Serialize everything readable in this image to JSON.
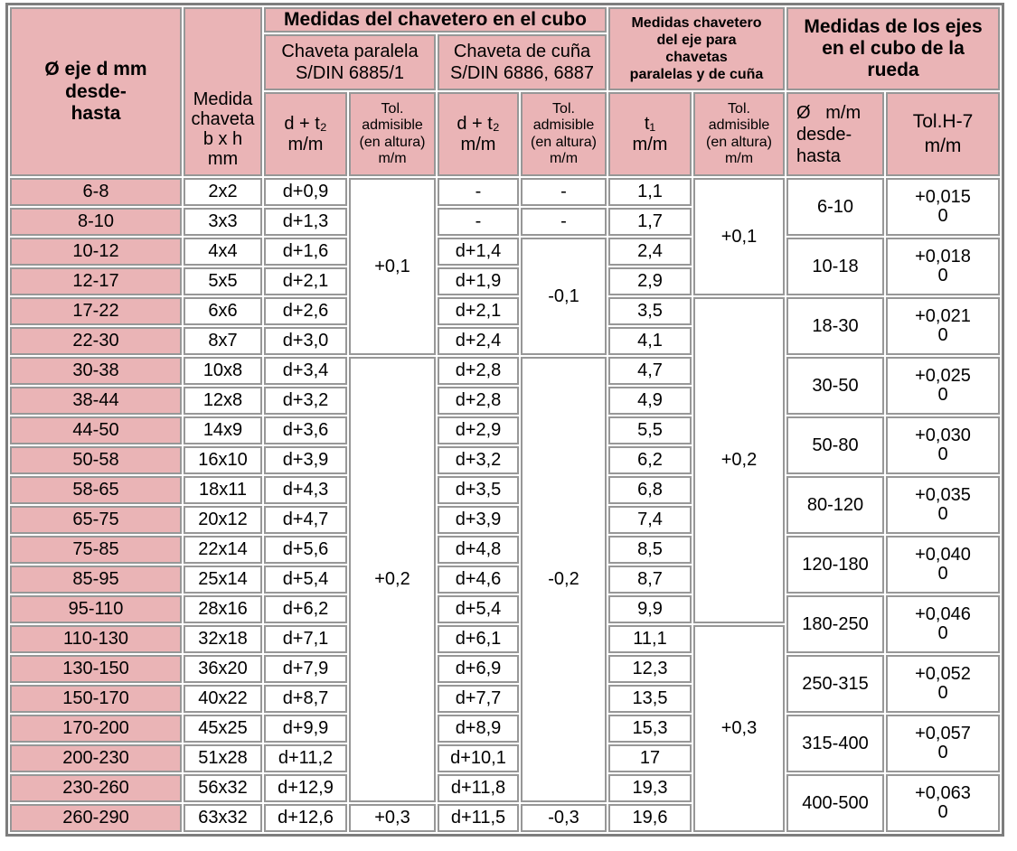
{
  "colors": {
    "pink": "#eab4b6",
    "cell_border": "#979797",
    "outer_border": "#7d7d7d",
    "background": "#ffffff",
    "text": "#000000"
  },
  "header": {
    "shaft_range": "Ø eje d mm\ndesde-\nhasta",
    "key_size": "Medida\nchaveta\nb x h\nmm",
    "hub_keyway_group": "Medidas del chavetero en el cubo",
    "shaft_keyway_group": "Medidas chavetero\ndel eje para\nchavetas\nparalelas y de cuña",
    "shaft_in_hub_group": "Medidas de los ejes\nen el cubo de la\nrueda",
    "parallel_key_group": "Chaveta paralela\nS/DIN 6885/1",
    "wedge_key_group": "Chaveta de cuña\nS/DIN 6886, 6887",
    "parallel_dt2": "d + t₂\nm/m",
    "parallel_tol": "Tol.\nadmisible\n(en altura)\nm/m",
    "wedge_dt2": "d + t₂\nm/m",
    "wedge_tol": "Tol.\nadmisible\n(en altura)\nm/m",
    "t1": "t₁\nm/m",
    "shaft_tol": "Tol.\nadmisible\n(en altura)\nm/m",
    "hub_range": "Ø   m/m\ndesde-\nhasta",
    "hub_tol": "Tol.H-7\nm/m"
  },
  "body": {
    "rows": [
      {
        "range": "6-8",
        "key": "2x2",
        "par": "d+0,9",
        "cuna": "-",
        "t1": "1,1"
      },
      {
        "range": "8-10",
        "key": "3x3",
        "par": "d+1,3",
        "cuna": "-",
        "t1": "1,7"
      },
      {
        "range": "10-12",
        "key": "4x4",
        "par": "d+1,6",
        "cuna": "d+1,4",
        "t1": "2,4"
      },
      {
        "range": "12-17",
        "key": "5x5",
        "par": "d+2,1",
        "cuna": "d+1,9",
        "t1": "2,9"
      },
      {
        "range": "17-22",
        "key": "6x6",
        "par": "d+2,6",
        "cuna": "d+2,1",
        "t1": "3,5"
      },
      {
        "range": "22-30",
        "key": "8x7",
        "par": "d+3,0",
        "cuna": "d+2,4",
        "t1": "4,1"
      },
      {
        "range": "30-38",
        "key": "10x8",
        "par": "d+3,4",
        "cuna": "d+2,8",
        "t1": "4,7"
      },
      {
        "range": "38-44",
        "key": "12x8",
        "par": "d+3,2",
        "cuna": "d+2,8",
        "t1": "4,9"
      },
      {
        "range": "44-50",
        "key": "14x9",
        "par": "d+3,6",
        "cuna": "d+2,9",
        "t1": "5,5"
      },
      {
        "range": "50-58",
        "key": "16x10",
        "par": "d+3,9",
        "cuna": "d+3,2",
        "t1": "6,2"
      },
      {
        "range": "58-65",
        "key": "18x11",
        "par": "d+4,3",
        "cuna": "d+3,5",
        "t1": "6,8"
      },
      {
        "range": "65-75",
        "key": "20x12",
        "par": "d+4,7",
        "cuna": "d+3,9",
        "t1": "7,4"
      },
      {
        "range": "75-85",
        "key": "22x14",
        "par": "d+5,6",
        "cuna": "d+4,8",
        "t1": "8,5"
      },
      {
        "range": "85-95",
        "key": "25x14",
        "par": "d+5,4",
        "cuna": "d+4,6",
        "t1": "8,7"
      },
      {
        "range": "95-110",
        "key": "28x16",
        "par": "d+6,2",
        "cuna": "d+5,4",
        "t1": "9,9"
      },
      {
        "range": "110-130",
        "key": "32x18",
        "par": "d+7,1",
        "cuna": "d+6,1",
        "t1": "11,1"
      },
      {
        "range": "130-150",
        "key": "36x20",
        "par": "d+7,9",
        "cuna": "d+6,9",
        "t1": "12,3"
      },
      {
        "range": "150-170",
        "key": "40x22",
        "par": "d+8,7",
        "cuna": "d+7,7",
        "t1": "13,5"
      },
      {
        "range": "170-200",
        "key": "45x25",
        "par": "d+9,9",
        "cuna": "d+8,9",
        "t1": "15,3"
      },
      {
        "range": "200-230",
        "key": "51x28",
        "par": "d+11,2",
        "cuna": "d+10,1",
        "t1": "17"
      },
      {
        "range": "230-260",
        "key": "56x32",
        "par": "d+12,9",
        "cuna": "d+11,8",
        "t1": "19,3"
      },
      {
        "range": "260-290",
        "key": "63x32",
        "par": "d+12,6",
        "cuna": "d+11,5",
        "t1": "19,6"
      }
    ],
    "parallel_tol_spans": [
      {
        "text": "+0,1",
        "start": 1,
        "span": 6
      },
      {
        "text": "+0,2",
        "start": 7,
        "span": 15
      },
      {
        "text": "+0,3",
        "start": 22,
        "span": 1
      }
    ],
    "wedge_tol_spans": [
      {
        "text": "-",
        "start": 1,
        "span": 1
      },
      {
        "text": "-",
        "start": 2,
        "span": 1
      },
      {
        "text": "-0,1",
        "start": 3,
        "span": 4
      },
      {
        "text": "-0,2",
        "start": 7,
        "span": 15
      },
      {
        "text": "-0,3",
        "start": 22,
        "span": 1
      }
    ],
    "shaft_tol_spans": [
      {
        "text": "+0,1",
        "start": 1,
        "span": 4
      },
      {
        "text": "+0,2",
        "start": 5,
        "span": 11
      },
      {
        "text": "+0,3",
        "start": 16,
        "span": 7
      }
    ],
    "hub_groups": [
      {
        "range": "6-10",
        "tol": "+0,015\n0",
        "start": 1,
        "span": 2
      },
      {
        "range": "10-18",
        "tol": "+0,018\n0",
        "start": 3,
        "span": 2
      },
      {
        "range": "18-30",
        "tol": "+0,021\n0",
        "start": 5,
        "span": 2
      },
      {
        "range": "30-50",
        "tol": "+0,025\n0",
        "start": 7,
        "span": 2
      },
      {
        "range": "50-80",
        "tol": "+0,030\n0",
        "start": 9,
        "span": 2
      },
      {
        "range": "80-120",
        "tol": "+0,035\n0",
        "start": 11,
        "span": 2
      },
      {
        "range": "120-180",
        "tol": "+0,040\n0",
        "start": 13,
        "span": 2
      },
      {
        "range": "180-250",
        "tol": "+0,046\n0",
        "start": 15,
        "span": 2
      },
      {
        "range": "250-315",
        "tol": "+0,052\n0",
        "start": 17,
        "span": 2
      },
      {
        "range": "315-400",
        "tol": "+0,057\n0",
        "start": 19,
        "span": 2
      },
      {
        "range": "400-500",
        "tol": "+0,063\n0",
        "start": 21,
        "span": 2
      }
    ]
  }
}
